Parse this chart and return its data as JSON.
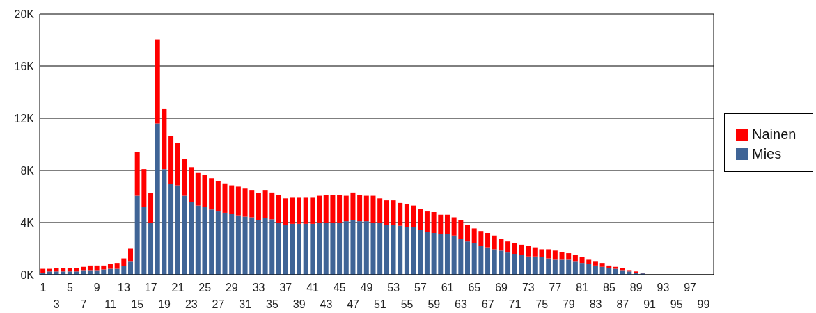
{
  "chart_data": {
    "type": "bar",
    "stacked": true,
    "legend": "right",
    "grid": "y",
    "categories": [
      "1",
      null,
      "3",
      null,
      "5",
      null,
      "7",
      null,
      "9",
      null,
      "11",
      null,
      "13",
      null,
      "15",
      null,
      "17",
      null,
      "19",
      null,
      "21",
      null,
      "23",
      null,
      "25",
      null,
      "27",
      null,
      "29",
      null,
      "31",
      null,
      "33",
      null,
      "35",
      null,
      "37",
      null,
      "39",
      null,
      "41",
      null,
      "43",
      null,
      "45",
      null,
      "47",
      null,
      "49",
      null,
      "51",
      null,
      "53",
      null,
      "55",
      null,
      "57",
      null,
      "59",
      null,
      "61",
      null,
      "63",
      null,
      "65",
      null,
      "67",
      null,
      "69",
      null,
      "71",
      null,
      "73",
      null,
      "75",
      null,
      "77",
      null,
      "79",
      null,
      "81",
      null,
      "83",
      null,
      "85",
      null,
      "87",
      null,
      "89",
      null,
      "91",
      null,
      "93",
      null,
      "95",
      null,
      "97",
      null,
      "99",
      null
    ],
    "ylim": [
      0,
      20000
    ],
    "yticks": [
      {
        "value": 0,
        "label": "0K"
      },
      {
        "value": 4000,
        "label": "4K"
      },
      {
        "value": 8000,
        "label": "8K"
      },
      {
        "value": 12000,
        "label": "12K"
      },
      {
        "value": 16000,
        "label": "16K"
      },
      {
        "value": 20000,
        "label": "20K"
      }
    ],
    "series": [
      {
        "name": "Mies",
        "color": "#3f6496",
        "values": [
          150,
          250,
          250,
          250,
          250,
          250,
          350,
          350,
          350,
          400,
          450,
          450,
          650,
          1050,
          6050,
          5200,
          3950,
          11600,
          8100,
          6950,
          6850,
          6050,
          5600,
          5300,
          5200,
          5000,
          4850,
          4750,
          4650,
          4550,
          4450,
          4400,
          4200,
          4350,
          4250,
          4000,
          3800,
          3900,
          3900,
          3900,
          3900,
          4000,
          4000,
          4000,
          4000,
          4100,
          4200,
          4100,
          4100,
          4000,
          4000,
          3800,
          3800,
          3750,
          3650,
          3650,
          3450,
          3300,
          3200,
          3100,
          3100,
          3000,
          2750,
          2550,
          2400,
          2200,
          2100,
          1950,
          1850,
          1700,
          1600,
          1500,
          1400,
          1400,
          1350,
          1250,
          1150,
          1150,
          1150,
          1050,
          900,
          800,
          700,
          600,
          500,
          450,
          350,
          250,
          150,
          100,
          null,
          null,
          null,
          0,
          0,
          0,
          0,
          0,
          0,
          0
        ]
      },
      {
        "name": "Nainen",
        "color": "#ff0000",
        "values": [
          300,
          200,
          250,
          250,
          250,
          250,
          250,
          350,
          350,
          300,
          350,
          450,
          600,
          950,
          3350,
          2900,
          2300,
          6450,
          4650,
          3700,
          3250,
          2850,
          2650,
          2500,
          2450,
          2400,
          2350,
          2250,
          2200,
          2200,
          2150,
          2100,
          2050,
          2150,
          2050,
          2100,
          2050,
          2050,
          2050,
          2050,
          2050,
          2050,
          2100,
          2100,
          2100,
          1950,
          2100,
          2000,
          1950,
          2050,
          1850,
          1900,
          1900,
          1750,
          1750,
          1650,
          1600,
          1550,
          1600,
          1500,
          1500,
          1400,
          1450,
          1250,
          1150,
          1150,
          1100,
          1050,
          900,
          850,
          850,
          800,
          800,
          700,
          600,
          700,
          700,
          600,
          500,
          450,
          450,
          350,
          350,
          300,
          200,
          150,
          150,
          100,
          100,
          50,
          null,
          0,
          0,
          0,
          0,
          0,
          0,
          0,
          0,
          0
        ]
      }
    ]
  }
}
